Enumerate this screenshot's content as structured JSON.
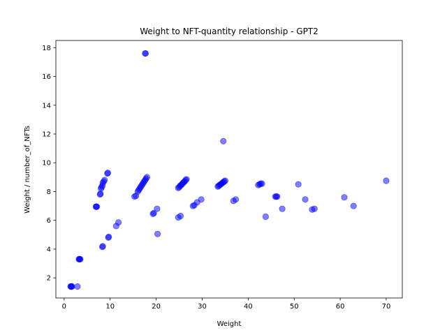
{
  "chart_data": {
    "type": "scatter",
    "title": "Weight to NFT-quantity relationship - GPT2",
    "xlabel": "Weight",
    "ylabel": "Weight / number_of_NFTs",
    "xlim": [
      -1.8,
      73.5
    ],
    "ylim": [
      0.6,
      18.5
    ],
    "xticks": [
      0,
      10,
      20,
      30,
      40,
      50,
      60,
      70
    ],
    "yticks": [
      2,
      4,
      6,
      8,
      10,
      12,
      14,
      16,
      18
    ],
    "grid": false,
    "marker_color": "#0000ff",
    "marker_alpha": 0.5,
    "series": [
      {
        "points": [
          [
            1.4,
            1.4
          ],
          [
            1.5,
            1.4
          ],
          [
            1.6,
            1.4
          ],
          [
            1.7,
            1.4
          ],
          [
            2.9,
            1.4
          ],
          [
            3.2,
            3.3
          ],
          [
            3.3,
            3.3
          ],
          [
            3.4,
            3.3
          ],
          [
            3.5,
            3.3
          ],
          [
            6.9,
            6.95
          ],
          [
            7.0,
            6.95
          ],
          [
            7.1,
            6.95
          ],
          [
            7.8,
            7.8
          ],
          [
            7.9,
            7.85
          ],
          [
            8.0,
            8.2
          ],
          [
            8.1,
            8.3
          ],
          [
            8.3,
            8.4
          ],
          [
            8.4,
            8.6
          ],
          [
            8.6,
            8.7
          ],
          [
            8.8,
            8.8
          ],
          [
            8.3,
            4.15
          ],
          [
            8.4,
            4.2
          ],
          [
            9.4,
            9.25
          ],
          [
            9.5,
            9.3
          ],
          [
            9.6,
            4.8
          ],
          [
            9.7,
            4.85
          ],
          [
            11.3,
            5.6
          ],
          [
            11.8,
            5.85
          ],
          [
            15.3,
            7.65
          ],
          [
            15.6,
            7.7
          ],
          [
            16.0,
            8.0
          ],
          [
            16.2,
            8.1
          ],
          [
            16.4,
            8.2
          ],
          [
            16.6,
            8.3
          ],
          [
            16.8,
            8.4
          ],
          [
            17.0,
            8.5
          ],
          [
            17.2,
            8.6
          ],
          [
            17.4,
            8.7
          ],
          [
            17.6,
            8.8
          ],
          [
            17.8,
            8.9
          ],
          [
            18.0,
            9.0
          ],
          [
            17.6,
            17.6
          ],
          [
            17.7,
            17.6
          ],
          [
            19.3,
            6.45
          ],
          [
            19.5,
            6.5
          ],
          [
            20.2,
            6.8
          ],
          [
            20.3,
            5.05
          ],
          [
            24.8,
            6.2
          ],
          [
            25.3,
            6.3
          ],
          [
            24.8,
            8.25
          ],
          [
            25.0,
            8.3
          ],
          [
            25.2,
            8.4
          ],
          [
            25.4,
            8.45
          ],
          [
            25.6,
            8.5
          ],
          [
            25.8,
            8.6
          ],
          [
            26.0,
            8.65
          ],
          [
            26.2,
            8.7
          ],
          [
            26.4,
            8.8
          ],
          [
            26.6,
            8.85
          ],
          [
            28.0,
            7.0
          ],
          [
            28.3,
            7.05
          ],
          [
            28.9,
            7.25
          ],
          [
            29.8,
            7.45
          ],
          [
            33.4,
            8.35
          ],
          [
            33.6,
            8.4
          ],
          [
            33.8,
            8.45
          ],
          [
            34.0,
            8.5
          ],
          [
            34.2,
            8.55
          ],
          [
            34.4,
            8.6
          ],
          [
            34.6,
            8.65
          ],
          [
            34.8,
            8.7
          ],
          [
            35.0,
            8.75
          ],
          [
            34.6,
            11.5
          ],
          [
            36.8,
            7.35
          ],
          [
            37.3,
            7.45
          ],
          [
            42.2,
            8.45
          ],
          [
            42.5,
            8.5
          ],
          [
            42.7,
            8.55
          ],
          [
            43.0,
            8.55
          ],
          [
            43.8,
            6.25
          ],
          [
            45.9,
            7.65
          ],
          [
            46.1,
            7.65
          ],
          [
            46.3,
            7.65
          ],
          [
            47.4,
            6.8
          ],
          [
            50.9,
            8.5
          ],
          [
            52.4,
            7.45
          ],
          [
            53.9,
            6.75
          ],
          [
            54.4,
            6.8
          ],
          [
            60.9,
            7.6
          ],
          [
            62.9,
            7.0
          ],
          [
            70.0,
            8.75
          ]
        ]
      }
    ]
  }
}
